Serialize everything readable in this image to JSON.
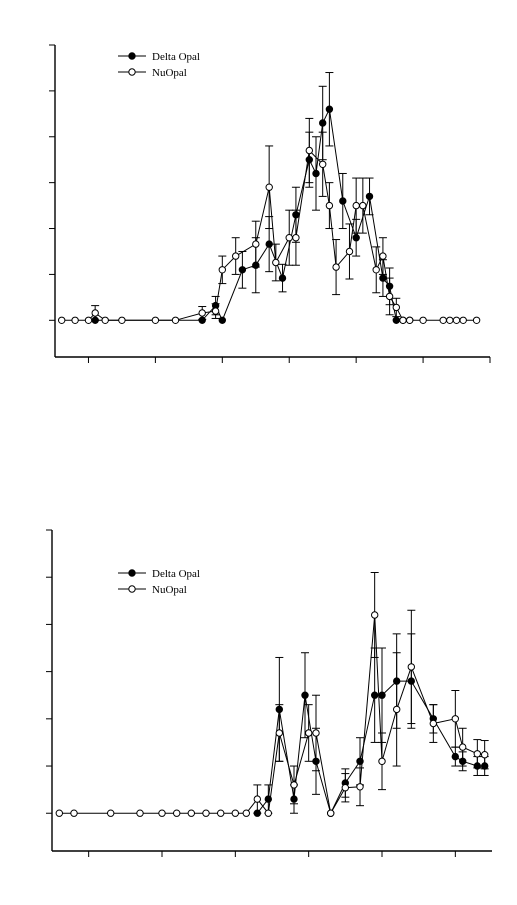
{
  "chart_data": [
    {
      "type": "line",
      "title": "",
      "xlabel": "",
      "ylabel": "",
      "xlim": [
        0,
        65
      ],
      "ylim": [
        -4,
        30
      ],
      "grid": false,
      "legend_position": "top-left",
      "xticks": [
        5,
        15,
        25,
        35,
        45,
        55,
        65
      ],
      "yticks": [
        0,
        5,
        10,
        15,
        20,
        25,
        30
      ],
      "series": [
        {
          "name": "Delta Opal",
          "marker": "filled-circle",
          "x": [
            6,
            22,
            24,
            25,
            28,
            30,
            32,
            34,
            36,
            38,
            39,
            40,
            41,
            43,
            45,
            47,
            49,
            50,
            51,
            52,
            53
          ],
          "y": [
            0,
            0,
            1.6,
            0,
            5.5,
            6,
            8.3,
            4.6,
            11.5,
            17.5,
            16,
            21.5,
            23,
            13,
            9,
            13.5,
            4.6,
            3.7,
            0,
            0,
            0
          ],
          "err": [
            0,
            0,
            1,
            0,
            2,
            3,
            3,
            1.5,
            3,
            3,
            4,
            4,
            4,
            3,
            2,
            2,
            2,
            2,
            0,
            0,
            0
          ]
        },
        {
          "name": "NuOpal",
          "marker": "open-circle",
          "x": [
            1,
            3,
            5,
            6,
            7.5,
            10,
            15,
            18,
            22,
            24,
            25,
            27,
            30,
            32,
            33,
            35,
            36,
            38,
            40,
            41,
            42,
            44,
            45,
            46,
            48,
            49,
            50,
            51,
            52,
            53,
            55,
            58,
            59,
            60,
            61,
            63
          ],
          "y": [
            0,
            0,
            0,
            0.8,
            0,
            0,
            0,
            0,
            0.8,
            1,
            5.5,
            7,
            8.3,
            14.5,
            6.3,
            9,
            9,
            18.5,
            17,
            12.5,
            5.8,
            7.5,
            12.5,
            12.5,
            5.5,
            7,
            2.6,
            1.4,
            0,
            0,
            0,
            0,
            0,
            0,
            0,
            0
          ],
          "err": [
            0,
            0,
            0,
            0.8,
            0,
            0,
            0,
            0,
            0.7,
            0.8,
            1.5,
            2,
            2.5,
            4.5,
            2,
            3,
            3,
            3.5,
            3.5,
            2.5,
            3,
            3,
            3,
            3,
            2.5,
            2,
            2,
            1,
            0,
            0,
            0,
            0,
            0,
            0,
            0,
            0
          ]
        }
      ]
    },
    {
      "type": "line",
      "title": "",
      "xlabel": "",
      "ylabel": "",
      "xlim": [
        0,
        60
      ],
      "ylim": [
        -4,
        30
      ],
      "grid": false,
      "legend_position": "top-left",
      "xticks": [
        5,
        15,
        25,
        35,
        45,
        55
      ],
      "yticks": [
        0,
        5,
        10,
        15,
        20,
        25,
        30
      ],
      "series": [
        {
          "name": "Delta Opal",
          "marker": "filled-circle",
          "x": [
            28,
            29.5,
            31,
            33,
            34.5,
            36,
            38,
            40,
            42,
            44,
            45,
            47,
            49,
            52,
            55,
            56,
            58,
            59
          ],
          "y": [
            0,
            1.5,
            11,
            1.5,
            12.5,
            5.5,
            0,
            3.2,
            5.5,
            12.5,
            12.5,
            14,
            14,
            10,
            6,
            5.5,
            5,
            5
          ],
          "err": [
            0,
            1.5,
            5.5,
            1.5,
            4.5,
            3.5,
            0,
            1.5,
            2.5,
            5,
            5,
            5,
            5,
            1.5,
            1,
            1,
            1,
            1
          ]
        },
        {
          "name": "NuOpal",
          "marker": "open-circle",
          "x": [
            1,
            3,
            8,
            12,
            15,
            17,
            19,
            21,
            23,
            25,
            26.5,
            28,
            29.5,
            31,
            33,
            35,
            36,
            38,
            40,
            42,
            44,
            45,
            47,
            49,
            52,
            55,
            56,
            58,
            59
          ],
          "y": [
            0,
            0,
            0,
            0,
            0,
            0,
            0,
            0,
            0,
            0,
            0,
            1.5,
            0,
            8.5,
            3,
            8.5,
            8.5,
            0,
            2.7,
            2.8,
            21,
            5.5,
            11,
            15.5,
            9.5,
            10,
            7,
            6.3,
            6.2
          ],
          "err": [
            0,
            0,
            0,
            0,
            0,
            0,
            0,
            0,
            0,
            0,
            0,
            1.5,
            0,
            3,
            2,
            3,
            4,
            0,
            1.5,
            2,
            4.5,
            3,
            6,
            6,
            2,
            3,
            2,
            1.5,
            1.5
          ]
        }
      ]
    }
  ]
}
